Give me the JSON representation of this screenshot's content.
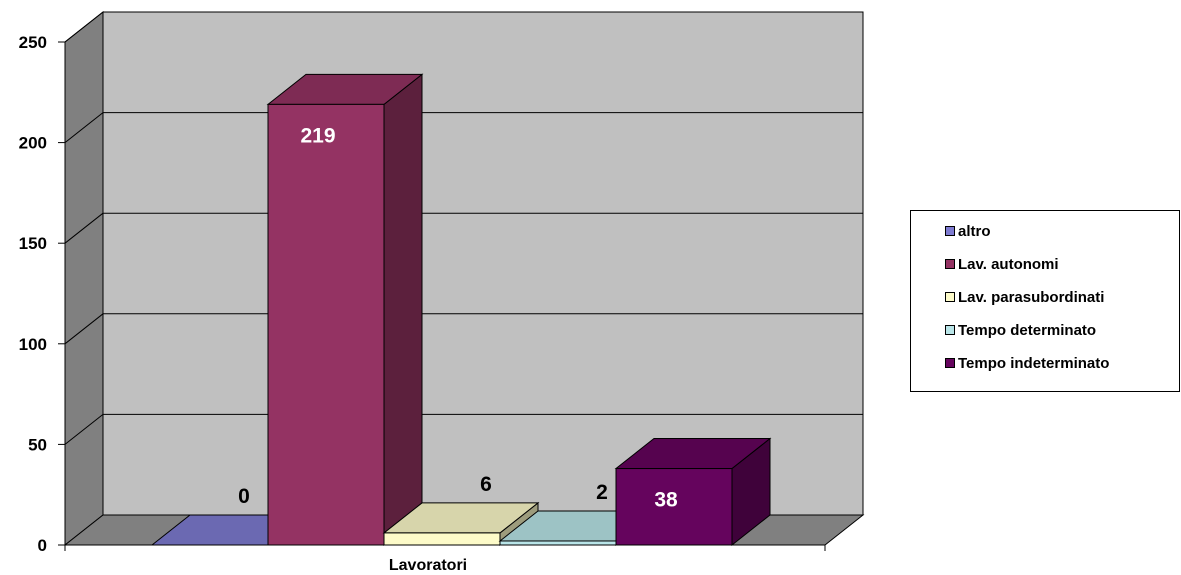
{
  "chart_data": {
    "type": "bar",
    "categories": [
      "Lavoratori"
    ],
    "xlabel": "Lavoratori",
    "ylim": [
      0,
      250
    ],
    "yticks": [
      0,
      50,
      100,
      150,
      200,
      250
    ],
    "grid": true,
    "legend_position": "right",
    "series": [
      {
        "name": "altro",
        "values": [
          0
        ],
        "color": "#7E7BD1"
      },
      {
        "name": "Lav. autonomi",
        "values": [
          219
        ],
        "color": "#943363"
      },
      {
        "name": "Lav. parasubordinati",
        "values": [
          6
        ],
        "color": "#FDFBC9"
      },
      {
        "name": "Tempo determinato",
        "values": [
          2
        ],
        "color": "#B9E5E8"
      },
      {
        "name": "Tempo indeterminato",
        "values": [
          38
        ],
        "color": "#65045D"
      }
    ],
    "data_labels": [
      "0",
      "219",
      "6",
      "2",
      "38"
    ],
    "colors": {
      "wall": "#C0C0C0",
      "side_wall": "#808080",
      "floor": "#808080",
      "grid": "#000000"
    }
  }
}
